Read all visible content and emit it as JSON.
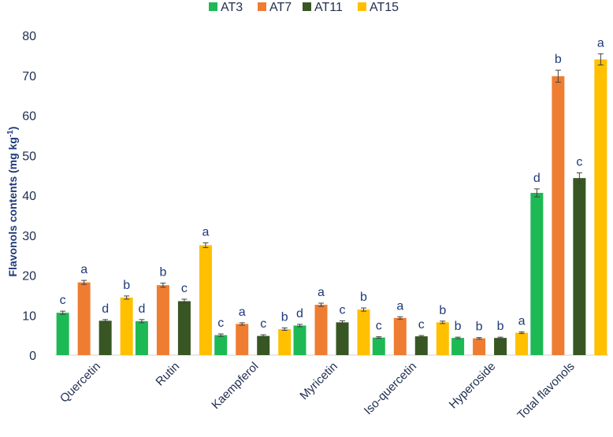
{
  "chart_data": {
    "type": "bar",
    "ylabel": "Flavonols contents (mg kg",
    "ylabel_superscript": "-1",
    "ylabel_suffix": ")",
    "ylim": [
      0,
      80
    ],
    "yticks": [
      0,
      10,
      20,
      30,
      40,
      50,
      60,
      70,
      80
    ],
    "grid": false,
    "legend_position": "top",
    "categories": [
      "Quercetin",
      "Rutin",
      "Kaempferol",
      "Myricetin",
      "Iso-quercetin",
      "Hyperoside",
      "Total flavonols"
    ],
    "series": [
      {
        "name": "AT3",
        "color": "#1db954",
        "values": [
          10.6,
          8.5,
          5.0,
          7.4,
          4.4,
          4.3,
          40.6
        ],
        "errors": [
          0.4,
          0.4,
          0.3,
          0.3,
          0.2,
          0.2,
          1.0
        ],
        "letters": [
          "c",
          "d",
          "c",
          "d",
          "c",
          "b",
          "d"
        ]
      },
      {
        "name": "AT7",
        "color": "#ef7d31",
        "values": [
          18.2,
          17.5,
          7.8,
          12.6,
          9.3,
          4.2,
          69.8
        ],
        "errors": [
          0.5,
          0.5,
          0.3,
          0.4,
          0.3,
          0.2,
          1.5
        ],
        "letters": [
          "a",
          "b",
          "a",
          "a",
          "a",
          "b",
          "b"
        ]
      },
      {
        "name": "AT11",
        "color": "#375623",
        "values": [
          8.6,
          13.5,
          4.8,
          8.2,
          4.7,
          4.3,
          44.3
        ],
        "errors": [
          0.3,
          0.5,
          0.3,
          0.4,
          0.2,
          0.2,
          1.3
        ],
        "letters": [
          "d",
          "c",
          "c",
          "c",
          "c",
          "b",
          "c"
        ]
      },
      {
        "name": "AT15",
        "color": "#ffc000",
        "values": [
          14.4,
          27.5,
          6.5,
          11.4,
          8.2,
          5.6,
          74.0
        ],
        "errors": [
          0.4,
          0.6,
          0.3,
          0.4,
          0.3,
          0.2,
          1.4
        ],
        "letters": [
          "b",
          "a",
          "b",
          "b",
          "b",
          "a",
          "a"
        ]
      }
    ]
  }
}
